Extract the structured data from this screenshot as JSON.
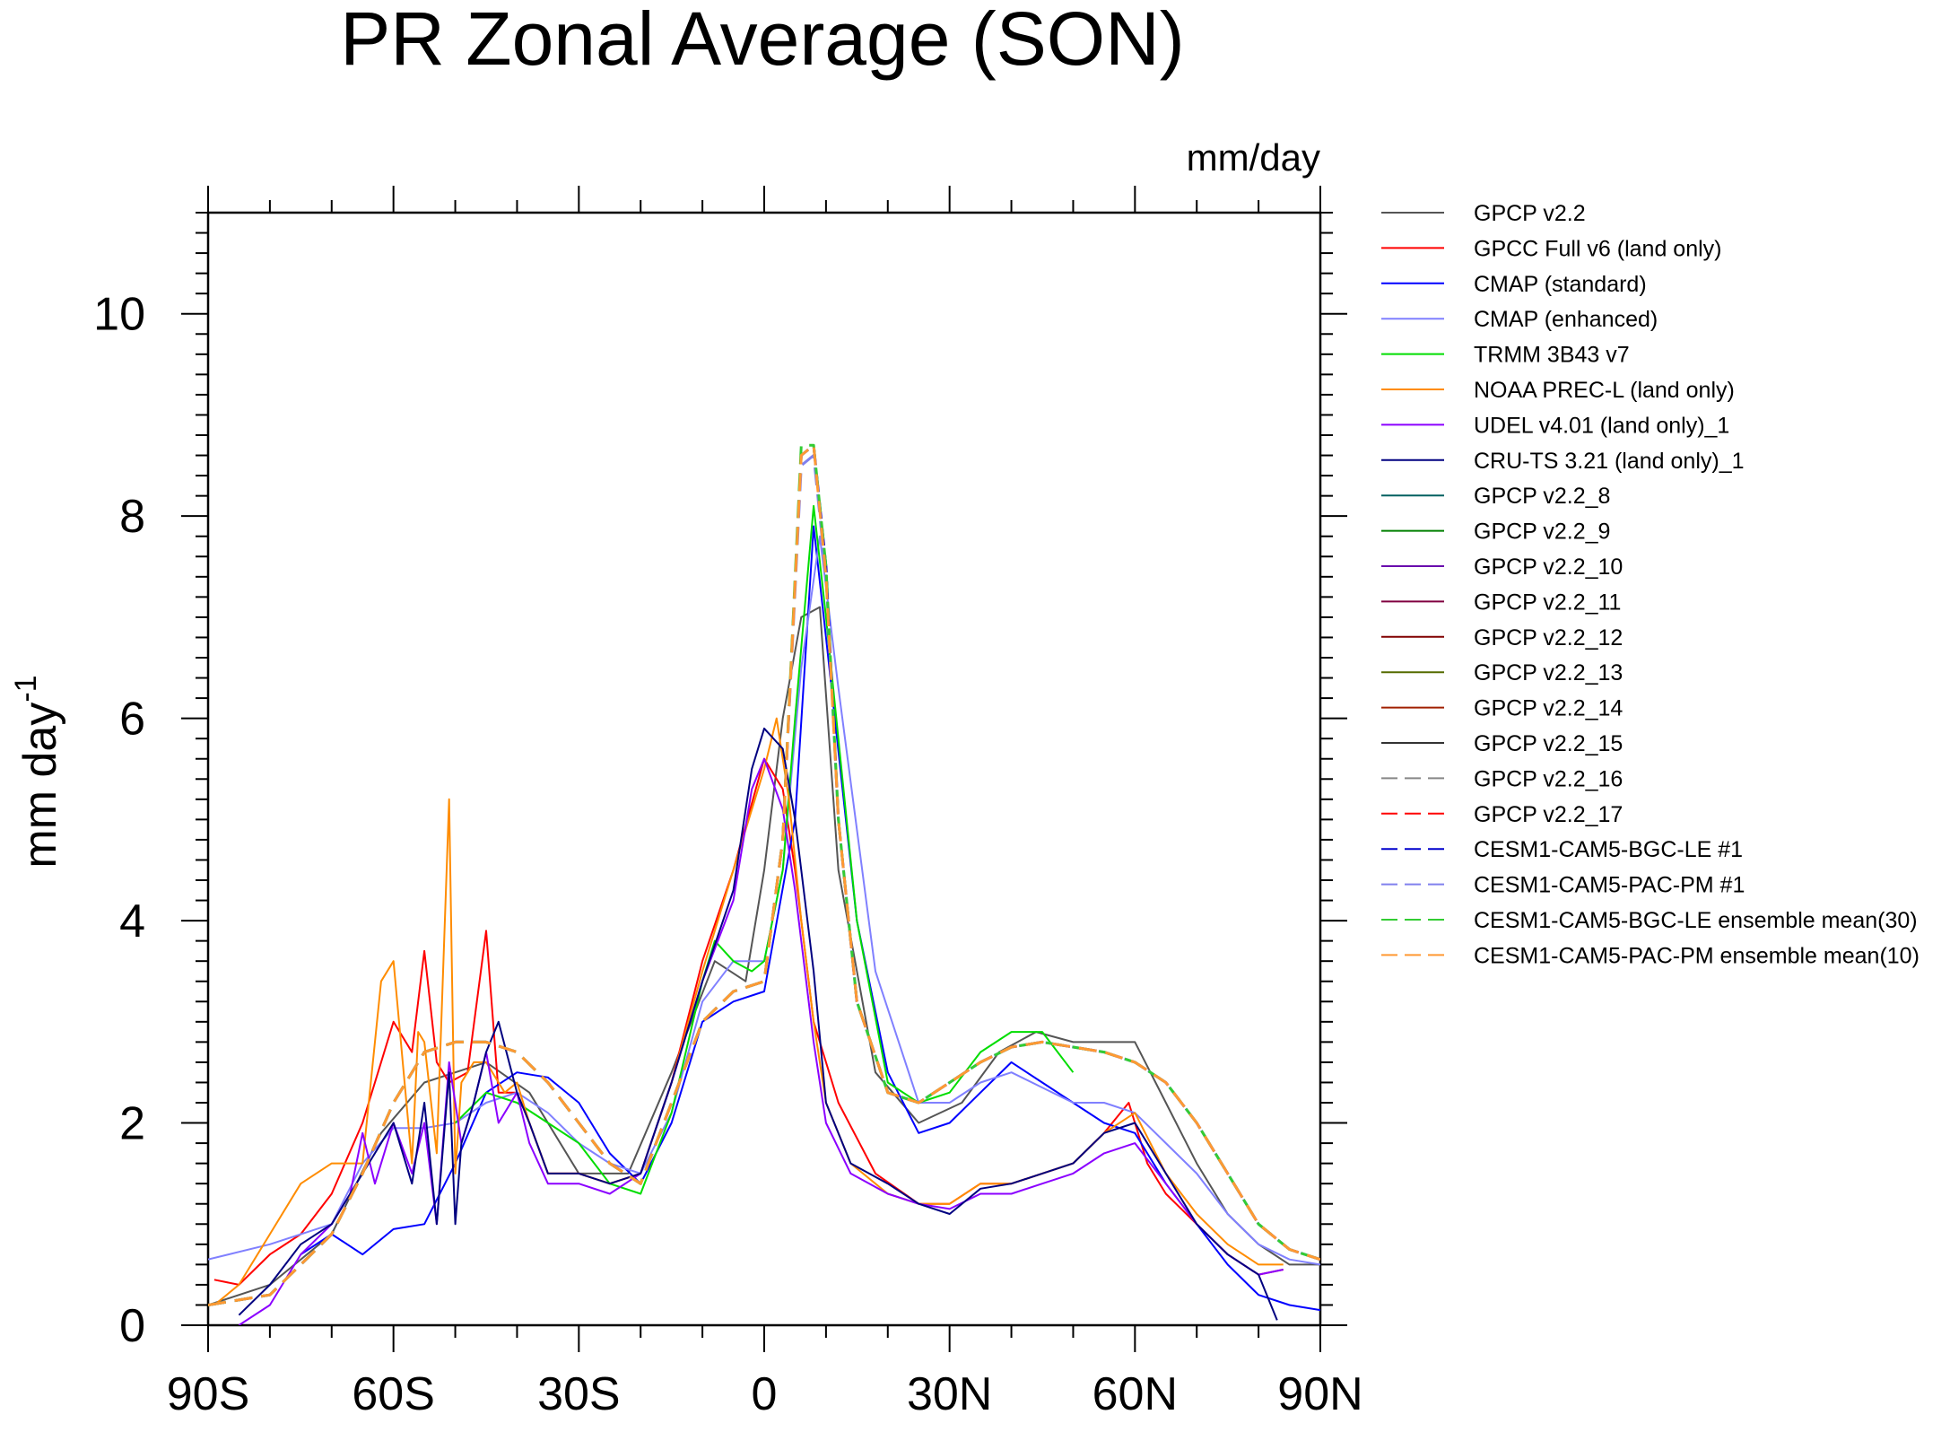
{
  "chart_data": {
    "type": "line",
    "title": "PR Zonal Average (SON)",
    "units_label": "mm/day",
    "ylabel": "mm day",
    "ylabel_sup": "-1",
    "xlim": [
      -90,
      90
    ],
    "ylim": [
      0,
      11
    ],
    "xticks": [
      {
        "value": -90,
        "label": "90S"
      },
      {
        "value": -60,
        "label": "60S"
      },
      {
        "value": -30,
        "label": "30S"
      },
      {
        "value": 0,
        "label": "0"
      },
      {
        "value": 30,
        "label": "30N"
      },
      {
        "value": 60,
        "label": "60N"
      },
      {
        "value": 90,
        "label": "90N"
      }
    ],
    "yticks": [
      {
        "value": 0,
        "label": "0"
      },
      {
        "value": 2,
        "label": "2"
      },
      {
        "value": 4,
        "label": "4"
      },
      {
        "value": 6,
        "label": "6"
      },
      {
        "value": 8,
        "label": "8"
      },
      {
        "value": 10,
        "label": "10"
      }
    ],
    "series": [
      {
        "name": "GPCP v2.2",
        "color": "#555555",
        "dash": false,
        "x": [
          -90,
          -80,
          -70,
          -62,
          -55,
          -45,
          -38,
          -30,
          -22,
          -15,
          -8,
          -3,
          0,
          3,
          6,
          9,
          12,
          18,
          25,
          32,
          38,
          44,
          50,
          55,
          60,
          65,
          70,
          75,
          80,
          85,
          90
        ],
        "y": [
          0.2,
          0.4,
          0.9,
          1.9,
          2.4,
          2.6,
          2.3,
          1.5,
          1.5,
          2.5,
          3.6,
          3.4,
          4.5,
          6.0,
          7.0,
          7.1,
          4.5,
          2.5,
          2.0,
          2.2,
          2.7,
          2.9,
          2.8,
          2.8,
          2.8,
          2.2,
          1.6,
          1.1,
          0.8,
          0.6,
          0.6
        ]
      },
      {
        "name": "GPCC Full v6 (land only)",
        "color": "#ff0000",
        "dash": false,
        "x": [
          -89,
          -85,
          -80,
          -75,
          -70,
          -65,
          -60,
          -57,
          -55,
          -53,
          -51,
          -48,
          -45,
          -43,
          -40,
          -38,
          -35,
          -30,
          -25,
          -20,
          -15,
          -10,
          -5,
          0,
          3,
          5,
          8,
          12,
          18,
          25,
          30,
          35,
          40,
          45,
          50,
          55,
          59,
          62,
          65,
          70,
          75,
          80,
          84
        ],
        "y": [
          0.45,
          0.4,
          0.7,
          0.9,
          1.3,
          2.0,
          3.0,
          2.7,
          3.7,
          2.6,
          2.4,
          2.5,
          3.9,
          2.3,
          2.3,
          2.0,
          1.5,
          1.5,
          1.4,
          1.5,
          2.4,
          3.6,
          4.5,
          5.6,
          5.3,
          4.5,
          3.0,
          2.2,
          1.5,
          1.2,
          1.2,
          1.4,
          1.4,
          1.5,
          1.6,
          1.9,
          2.2,
          1.6,
          1.3,
          1.0,
          0.7,
          0.5,
          0.55
        ]
      },
      {
        "name": "CMAP (standard)",
        "color": "#0000ff",
        "dash": false,
        "x": [
          -75,
          -70,
          -65,
          -60,
          -55,
          -50,
          -45,
          -40,
          -35,
          -30,
          -25,
          -20,
          -15,
          -10,
          -5,
          0,
          5,
          8,
          10,
          15,
          20,
          25,
          30,
          35,
          40,
          45,
          50,
          55,
          60,
          65,
          70,
          75,
          80,
          85,
          90
        ],
        "y": [
          0.7,
          0.9,
          0.7,
          0.95,
          1.0,
          1.6,
          2.3,
          2.5,
          2.45,
          2.2,
          1.7,
          1.4,
          2.0,
          3.0,
          3.2,
          3.3,
          5.0,
          7.9,
          6.8,
          4.0,
          2.5,
          1.9,
          2.0,
          2.3,
          2.6,
          2.4,
          2.2,
          2.0,
          1.9,
          1.4,
          1.0,
          0.6,
          0.3,
          0.2,
          0.15
        ]
      },
      {
        "name": "CMAP (enhanced)",
        "color": "#8080ff",
        "dash": false,
        "x": [
          -90,
          -80,
          -70,
          -65,
          -60,
          -55,
          -50,
          -45,
          -40,
          -35,
          -30,
          -25,
          -20,
          -15,
          -10,
          -5,
          0,
          3,
          6,
          9,
          12,
          18,
          25,
          30,
          35,
          40,
          45,
          50,
          55,
          60,
          65,
          70,
          75,
          80,
          85,
          90
        ],
        "y": [
          0.65,
          0.8,
          1.0,
          1.6,
          1.95,
          1.95,
          2.0,
          2.2,
          2.3,
          2.1,
          1.8,
          1.6,
          1.5,
          2.1,
          3.2,
          3.6,
          3.6,
          4.5,
          6.5,
          7.8,
          6.3,
          3.5,
          2.2,
          2.2,
          2.4,
          2.5,
          2.35,
          2.2,
          2.2,
          2.1,
          1.8,
          1.5,
          1.1,
          0.8,
          0.65,
          0.6
        ]
      },
      {
        "name": "TRMM 3B43 v7",
        "color": "#00dd00",
        "dash": false,
        "x": [
          -50,
          -45,
          -40,
          -35,
          -30,
          -25,
          -20,
          -15,
          -10,
          -8,
          -5,
          -2,
          0,
          3,
          5,
          8,
          10,
          15,
          20,
          25,
          30,
          35,
          40,
          45,
          50
        ],
        "y": [
          2.0,
          2.3,
          2.2,
          2.0,
          1.8,
          1.4,
          1.3,
          2.1,
          3.4,
          3.8,
          3.6,
          3.5,
          3.6,
          4.5,
          6.0,
          8.1,
          7.0,
          4.0,
          2.4,
          2.2,
          2.3,
          2.7,
          2.9,
          2.9,
          2.5
        ]
      },
      {
        "name": "NOAA PREC-L (land only)",
        "color": "#ff8c00",
        "dash": false,
        "x": [
          -89,
          -85,
          -80,
          -75,
          -70,
          -65,
          -62,
          -60,
          -57,
          -56,
          -55,
          -53,
          -51,
          -50,
          -49,
          -47,
          -45,
          -42,
          -40,
          -38,
          -35,
          -30,
          -25,
          -20,
          -15,
          -10,
          -5,
          0,
          2,
          4,
          6,
          8,
          10,
          14,
          20,
          25,
          30,
          35,
          40,
          45,
          50,
          55,
          60,
          65,
          70,
          75,
          80,
          84
        ],
        "y": [
          0.2,
          0.4,
          0.9,
          1.4,
          1.6,
          1.6,
          3.4,
          3.6,
          1.6,
          2.9,
          2.8,
          1.7,
          5.2,
          1.5,
          2.4,
          2.6,
          2.6,
          2.3,
          2.4,
          2.0,
          1.5,
          1.5,
          1.4,
          1.5,
          2.4,
          3.5,
          4.5,
          5.5,
          6.0,
          5.2,
          4.0,
          3.0,
          2.2,
          1.6,
          1.3,
          1.2,
          1.2,
          1.4,
          1.4,
          1.5,
          1.6,
          1.9,
          2.1,
          1.5,
          1.1,
          0.8,
          0.6,
          0.6
        ]
      },
      {
        "name": "UDEL v4.01 (land only)_1",
        "color": "#8b00ff",
        "dash": false,
        "x": [
          -85,
          -80,
          -75,
          -70,
          -67,
          -65,
          -63,
          -60,
          -57,
          -55,
          -53,
          -51,
          -49,
          -47,
          -45,
          -43,
          -40,
          -38,
          -35,
          -30,
          -25,
          -20,
          -15,
          -10,
          -5,
          -2,
          0,
          3,
          5,
          8,
          10,
          14,
          20,
          25,
          30,
          35,
          40,
          45,
          50,
          55,
          60,
          65,
          70,
          75,
          80,
          84
        ],
        "y": [
          0.0,
          0.2,
          0.7,
          1.0,
          1.3,
          1.9,
          1.4,
          2.0,
          1.5,
          2.0,
          1.0,
          2.6,
          1.8,
          2.2,
          2.7,
          2.0,
          2.3,
          1.8,
          1.4,
          1.4,
          1.3,
          1.5,
          2.4,
          3.4,
          4.2,
          5.3,
          5.6,
          5.1,
          4.3,
          2.8,
          2.0,
          1.5,
          1.3,
          1.2,
          1.15,
          1.3,
          1.3,
          1.4,
          1.5,
          1.7,
          1.8,
          1.4,
          1.0,
          0.7,
          0.5,
          0.55
        ]
      },
      {
        "name": "CRU-TS 3.21 (land only)_1",
        "color": "#000080",
        "dash": false,
        "x": [
          -85,
          -80,
          -75,
          -70,
          -65,
          -60,
          -57,
          -55,
          -53,
          -51,
          -50,
          -49,
          -47,
          -45,
          -43,
          -40,
          -38,
          -35,
          -30,
          -25,
          -20,
          -15,
          -10,
          -5,
          -2,
          0,
          3,
          5,
          8,
          10,
          14,
          20,
          25,
          30,
          35,
          40,
          45,
          50,
          55,
          60,
          65,
          70,
          75,
          80,
          83
        ],
        "y": [
          0.1,
          0.4,
          0.8,
          1.0,
          1.5,
          2.0,
          1.4,
          2.2,
          1.0,
          2.5,
          1.0,
          1.8,
          2.2,
          2.7,
          3.0,
          2.3,
          2.0,
          1.5,
          1.5,
          1.4,
          1.5,
          2.4,
          3.4,
          4.3,
          5.5,
          5.9,
          5.7,
          5.0,
          3.5,
          2.2,
          1.6,
          1.4,
          1.2,
          1.1,
          1.35,
          1.4,
          1.5,
          1.6,
          1.9,
          2.0,
          1.5,
          1.0,
          0.7,
          0.5,
          0.05
        ]
      },
      {
        "name": "GPCP v2.2_8",
        "color": "#006060",
        "dash": false,
        "x": [],
        "y": []
      },
      {
        "name": "GPCP v2.2_9",
        "color": "#008000",
        "dash": false,
        "x": [],
        "y": []
      },
      {
        "name": "GPCP v2.2_10",
        "color": "#6a0dad",
        "dash": false,
        "x": [],
        "y": []
      },
      {
        "name": "GPCP v2.2_11",
        "color": "#800040",
        "dash": false,
        "x": [],
        "y": []
      },
      {
        "name": "GPCP v2.2_12",
        "color": "#800000",
        "dash": false,
        "x": [],
        "y": []
      },
      {
        "name": "GPCP v2.2_13",
        "color": "#556b00",
        "dash": false,
        "x": [],
        "y": []
      },
      {
        "name": "GPCP v2.2_14",
        "color": "#a02000",
        "dash": false,
        "x": [],
        "y": []
      },
      {
        "name": "GPCP v2.2_15",
        "color": "#333333",
        "dash": false,
        "x": [],
        "y": []
      },
      {
        "name": "GPCP v2.2_16",
        "color": "#888888",
        "dash": true,
        "x": [],
        "y": []
      },
      {
        "name": "GPCP v2.2_17",
        "color": "#ff0000",
        "dash": true,
        "x": [],
        "y": []
      },
      {
        "name": "CESM1-CAM5-BGC-LE #1",
        "color": "#0000cc",
        "dash": true,
        "x": [
          -90,
          -80,
          -70,
          -65,
          -60,
          -55,
          -50,
          -45,
          -40,
          -35,
          -30,
          -25,
          -20,
          -15,
          -10,
          -5,
          0,
          3,
          6,
          8,
          10,
          12,
          15,
          20,
          25,
          30,
          35,
          40,
          45,
          50,
          55,
          60,
          65,
          70,
          75,
          80,
          85,
          90
        ],
        "y": [
          0.2,
          0.3,
          0.9,
          1.5,
          2.2,
          2.7,
          2.8,
          2.8,
          2.7,
          2.4,
          2.0,
          1.6,
          1.4,
          2.2,
          3.0,
          3.3,
          3.4,
          4.8,
          8.6,
          8.7,
          7.5,
          5.0,
          3.2,
          2.3,
          2.2,
          2.4,
          2.6,
          2.75,
          2.8,
          2.75,
          2.7,
          2.6,
          2.4,
          2.0,
          1.5,
          1.0,
          0.75,
          0.65
        ]
      },
      {
        "name": "CESM1-CAM5-PAC-PM #1",
        "color": "#8080ee",
        "dash": true,
        "x": [
          -90,
          -80,
          -70,
          -65,
          -60,
          -55,
          -50,
          -45,
          -40,
          -35,
          -30,
          -25,
          -20,
          -15,
          -10,
          -5,
          0,
          3,
          6,
          8,
          10,
          12,
          15,
          20,
          25,
          30,
          35,
          40,
          45,
          50,
          55,
          60,
          65,
          70,
          75,
          80,
          85,
          90
        ],
        "y": [
          0.2,
          0.3,
          0.9,
          1.5,
          2.2,
          2.7,
          2.8,
          2.8,
          2.7,
          2.4,
          2.0,
          1.6,
          1.4,
          2.2,
          3.0,
          3.3,
          3.4,
          4.8,
          8.5,
          8.6,
          7.4,
          5.0,
          3.2,
          2.3,
          2.2,
          2.4,
          2.6,
          2.75,
          2.8,
          2.75,
          2.7,
          2.6,
          2.4,
          2.0,
          1.5,
          1.0,
          0.75,
          0.65
        ]
      },
      {
        "name": "CESM1-CAM5-BGC-LE ensemble mean(30)",
        "color": "#33cc33",
        "dash": true,
        "x": [
          -90,
          -80,
          -70,
          -65,
          -60,
          -55,
          -50,
          -45,
          -40,
          -35,
          -30,
          -25,
          -20,
          -15,
          -10,
          -5,
          0,
          3,
          6,
          8,
          10,
          12,
          15,
          20,
          25,
          30,
          35,
          40,
          45,
          50,
          55,
          60,
          65,
          70,
          75,
          80,
          85,
          90
        ],
        "y": [
          0.2,
          0.3,
          0.9,
          1.5,
          2.2,
          2.7,
          2.8,
          2.8,
          2.7,
          2.4,
          2.0,
          1.6,
          1.4,
          2.2,
          3.0,
          3.3,
          3.4,
          4.8,
          8.7,
          8.7,
          7.5,
          5.0,
          3.2,
          2.3,
          2.2,
          2.4,
          2.6,
          2.75,
          2.8,
          2.75,
          2.7,
          2.6,
          2.4,
          2.0,
          1.5,
          1.0,
          0.75,
          0.65
        ]
      },
      {
        "name": "CESM1-CAM5-PAC-PM ensemble mean(10)",
        "color": "#ff9933",
        "dash": true,
        "x": [
          -90,
          -80,
          -70,
          -65,
          -60,
          -55,
          -50,
          -45,
          -40,
          -35,
          -30,
          -25,
          -20,
          -15,
          -10,
          -5,
          0,
          3,
          6,
          8,
          10,
          12,
          15,
          20,
          25,
          30,
          35,
          40,
          45,
          50,
          55,
          60,
          65,
          70,
          75,
          80,
          85,
          90
        ],
        "y": [
          0.2,
          0.3,
          0.9,
          1.5,
          2.2,
          2.7,
          2.8,
          2.8,
          2.7,
          2.4,
          2.0,
          1.6,
          1.4,
          2.2,
          3.0,
          3.3,
          3.4,
          4.8,
          8.6,
          8.7,
          7.4,
          5.0,
          3.2,
          2.3,
          2.2,
          2.4,
          2.6,
          2.75,
          2.8,
          2.75,
          2.7,
          2.6,
          2.4,
          2.0,
          1.5,
          1.0,
          0.75,
          0.65
        ]
      }
    ]
  }
}
